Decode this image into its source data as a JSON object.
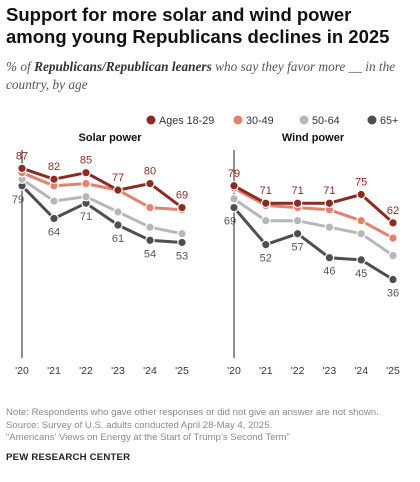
{
  "title": "Support for more solar and wind power among young Republicans declines in 2025",
  "subtitle": {
    "prefix": "% of ",
    "emphasis": "Republicans/Republican leaners",
    "suffix": " who say they favor more __ in the country, by age"
  },
  "legend": [
    "Ages 18-29",
    "30-49",
    "50-64",
    "65+"
  ],
  "series_colors": [
    "#8c2b1f",
    "#e3826f",
    "#b7b7b7",
    "#4e4e4e"
  ],
  "notes": [
    "Note: Respondents who gave other responses or did not give an answer are not shown.",
    "Source: Survey of U.S. adults conducted April 28-May 4, 2025.",
    "“Americans’ Views on Energy at the Start of Trump’s Second Term”"
  ],
  "source_label": "PEW RESEARCH CENTER",
  "chart_data": [
    {
      "type": "line",
      "title": "Solar power",
      "x": [
        "'20",
        "'21",
        "'22",
        "'23",
        "'24",
        "'25"
      ],
      "ylim": [
        0,
        100
      ],
      "grid": false,
      "legend": "top",
      "series": [
        {
          "name": "Ages 18-29",
          "values": [
            87,
            82,
            85,
            77,
            80,
            69
          ],
          "labels": [
            "87",
            "82",
            "85",
            "77",
            "80",
            "69"
          ]
        },
        {
          "name": "30-49",
          "values": [
            85,
            79,
            80,
            77,
            69,
            68
          ],
          "labels": [
            "",
            "",
            "",
            "",
            "",
            ""
          ]
        },
        {
          "name": "50-64",
          "values": [
            82,
            72,
            74,
            67,
            60,
            57
          ],
          "labels": [
            "",
            "",
            "",
            "",
            "",
            ""
          ]
        },
        {
          "name": "65+",
          "values": [
            79,
            64,
            71,
            61,
            54,
            53
          ],
          "labels": [
            "79",
            "64",
            "71",
            "61",
            "54",
            "53"
          ]
        }
      ]
    },
    {
      "type": "line",
      "title": "Wind power",
      "x": [
        "'20",
        "'21",
        "'22",
        "'23",
        "'24",
        "'25"
      ],
      "ylim": [
        0,
        100
      ],
      "grid": false,
      "series": [
        {
          "name": "Ages 18-29",
          "values": [
            79,
            71,
            71,
            71,
            75,
            62
          ],
          "labels": [
            "79",
            "71",
            "71",
            "71",
            "75",
            "62"
          ]
        },
        {
          "name": "30-49",
          "values": [
            78,
            70,
            69,
            68,
            63,
            55
          ],
          "labels": [
            "",
            "",
            "",
            "",
            "",
            ""
          ]
        },
        {
          "name": "50-64",
          "values": [
            73,
            63,
            63,
            60,
            57,
            47
          ],
          "labels": [
            "",
            "",
            "",
            "",
            "",
            ""
          ]
        },
        {
          "name": "65+",
          "values": [
            69,
            52,
            57,
            46,
            45,
            36
          ],
          "labels": [
            "69",
            "52",
            "57",
            "46",
            "45",
            "36"
          ]
        }
      ]
    }
  ]
}
